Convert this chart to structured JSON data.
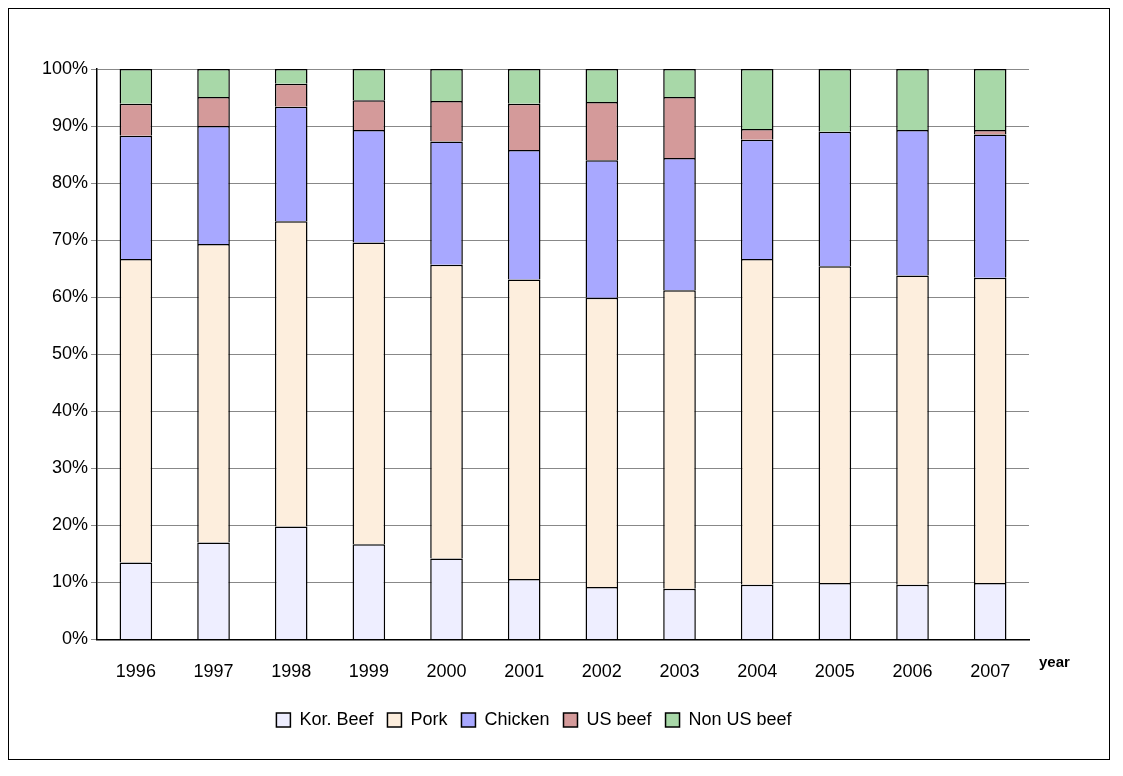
{
  "chart_data": {
    "type": "bar",
    "stacked": true,
    "xlabel": "year",
    "categories": [
      "1996",
      "1997",
      "1998",
      "1999",
      "2000",
      "2001",
      "2002",
      "2003",
      "2004",
      "2005",
      "2006",
      "2007"
    ],
    "series": [
      {
        "name": "Kor. Beef",
        "color": "#eeeeff",
        "values": [
          13.5,
          17,
          19.8,
          16.7,
          14.2,
          10.6,
          9.2,
          8.9,
          9.6,
          9.9,
          9.6,
          9.9
        ]
      },
      {
        "name": "Pork",
        "color": "#fdeedd",
        "values": [
          53.2,
          52.3,
          53.5,
          52.9,
          51.5,
          52.5,
          50.7,
          52.3,
          57.1,
          55.5,
          54.2,
          53.5
        ]
      },
      {
        "name": "Chicken",
        "color": "#a8a8ff",
        "values": [
          21.6,
          20.7,
          20.1,
          19.7,
          21.6,
          22.7,
          24.1,
          23.2,
          20.9,
          23.6,
          25.5,
          25.1
        ]
      },
      {
        "name": "US beef",
        "color": "#d49a9a",
        "values": [
          5.6,
          5.1,
          4.0,
          5.2,
          7.1,
          8.1,
          10.2,
          10.7,
          1.9,
          0,
          0,
          0.8
        ]
      },
      {
        "name": "Non US beef",
        "color": "#a8d8a8",
        "values": [
          6.1,
          4.9,
          2.6,
          5.5,
          5.6,
          6.1,
          5.8,
          4.9,
          10.5,
          11.0,
          10.7,
          10.7
        ]
      }
    ],
    "ylim": [
      0,
      100
    ],
    "yticks": [
      {
        "value": 0,
        "label": "0%"
      },
      {
        "value": 10,
        "label": "10%"
      },
      {
        "value": 20,
        "label": "20%"
      },
      {
        "value": 30,
        "label": "30%"
      },
      {
        "value": 40,
        "label": "40%"
      },
      {
        "value": 50,
        "label": "50%"
      },
      {
        "value": 60,
        "label": "60%"
      },
      {
        "value": 70,
        "label": "70%"
      },
      {
        "value": 80,
        "label": "80%"
      },
      {
        "value": 90,
        "label": "90%"
      },
      {
        "value": 100,
        "label": "100%"
      }
    ],
    "grid": "y",
    "legend": "bottom"
  }
}
